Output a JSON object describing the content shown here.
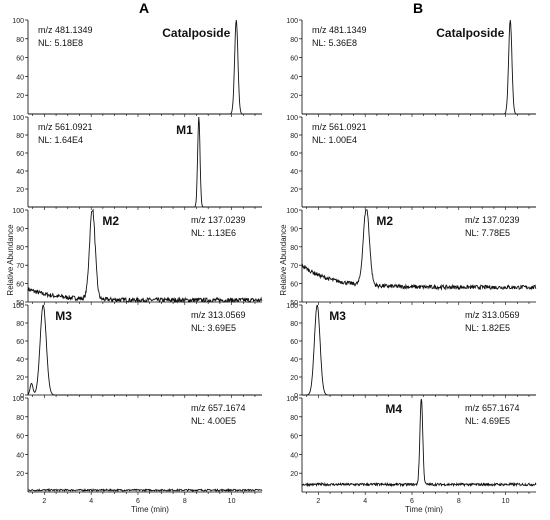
{
  "panel_labels": [
    "A",
    "B"
  ],
  "y_axis_label": "Relative Abundance",
  "x_axis_label": "Time (min)",
  "chart_data": {
    "type": "line",
    "description_free": true,
    "x_range": [
      1.3,
      11.3
    ],
    "x_ticks": [
      2,
      4,
      6,
      8,
      10
    ],
    "panels": [
      {
        "panel": "A",
        "traces": [
          {
            "compound": "Catalposide",
            "mz": "m/z 481.1349",
            "nl": "NL: 5.18E8",
            "ylim": [
              0,
              100
            ],
            "yticks": [
              20,
              40,
              60,
              80,
              100
            ],
            "baseline": 0,
            "noise": 0,
            "slope": 0,
            "peaks": [
              {
                "rt": 10.2,
                "height": 100,
                "width": 0.07
              }
            ]
          },
          {
            "compound": "M1",
            "mz": "m/z 561.0921",
            "nl": "NL: 1.64E4",
            "ylim": [
              0,
              100
            ],
            "yticks": [
              20,
              40,
              60,
              80,
              100
            ],
            "baseline": 0,
            "noise": 0,
            "slope": 0,
            "peaks": [
              {
                "rt": 8.6,
                "height": 100,
                "width": 0.05
              }
            ]
          },
          {
            "compound": "M2",
            "mz": "m/z 137.0239",
            "nl": "NL: 1.13E6",
            "ylim": [
              50,
              100
            ],
            "yticks": [
              50,
              60,
              70,
              80,
              90,
              100
            ],
            "baseline": 51,
            "noise": 1.2,
            "slope": 6,
            "peaks": [
              {
                "rt": 4.05,
                "height": 100,
                "width": 0.12
              }
            ]
          },
          {
            "compound": "M3",
            "mz": "m/z 313.0569",
            "nl": "NL: 3.69E5",
            "ylim": [
              0,
              100
            ],
            "yticks": [
              0,
              20,
              40,
              60,
              80,
              100
            ],
            "baseline": 0,
            "noise": 0,
            "slope": 0,
            "peaks": [
              {
                "rt": 1.95,
                "height": 100,
                "width": 0.13
              },
              {
                "rt": 1.45,
                "height": 13,
                "width": 0.06
              }
            ]
          },
          {
            "compound": "",
            "mz": "m/z 657.1674",
            "nl": "NL: 4.00E5",
            "ylim": [
              0,
              100
            ],
            "yticks": [
              20,
              40,
              60,
              80,
              100
            ],
            "baseline": 2,
            "noise": 0.9,
            "slope": 0,
            "peaks": []
          }
        ]
      },
      {
        "panel": "B",
        "traces": [
          {
            "compound": "Catalposide",
            "mz": "m/z 481.1349",
            "nl": "NL: 5.36E8",
            "ylim": [
              0,
              100
            ],
            "yticks": [
              20,
              40,
              60,
              80,
              100
            ],
            "baseline": 0,
            "noise": 0,
            "slope": 0,
            "peaks": [
              {
                "rt": 10.2,
                "height": 100,
                "width": 0.07
              }
            ]
          },
          {
            "compound": "",
            "mz": "m/z 561.0921",
            "nl": "NL: 1.00E4",
            "ylim": [
              0,
              100
            ],
            "yticks": [
              20,
              40,
              60,
              80,
              100
            ],
            "baseline": 0,
            "noise": 0,
            "slope": 0,
            "peaks": []
          },
          {
            "compound": "M2",
            "mz": "m/z 137.0239",
            "nl": "NL: 7.78E5",
            "ylim": [
              50,
              100
            ],
            "yticks": [
              50,
              60,
              70,
              80,
              90,
              100
            ],
            "baseline": 58,
            "noise": 1.1,
            "slope": 12,
            "peaks": [
              {
                "rt": 4.05,
                "height": 100,
                "width": 0.13
              }
            ]
          },
          {
            "compound": "M3",
            "mz": "m/z 313.0569",
            "nl": "NL: 1.82E5",
            "ylim": [
              0,
              100
            ],
            "yticks": [
              0,
              20,
              40,
              60,
              80,
              100
            ],
            "baseline": 0,
            "noise": 0,
            "slope": 0,
            "peaks": [
              {
                "rt": 1.95,
                "height": 100,
                "width": 0.12
              }
            ]
          },
          {
            "compound": "M4",
            "mz": "m/z 657.1674",
            "nl": "NL: 4.69E5",
            "ylim": [
              0,
              100
            ],
            "yticks": [
              20,
              40,
              60,
              80,
              100
            ],
            "baseline": 8,
            "noise": 1.3,
            "slope": 0,
            "peaks": [
              {
                "rt": 6.4,
                "height": 100,
                "width": 0.06
              }
            ]
          }
        ]
      }
    ]
  }
}
